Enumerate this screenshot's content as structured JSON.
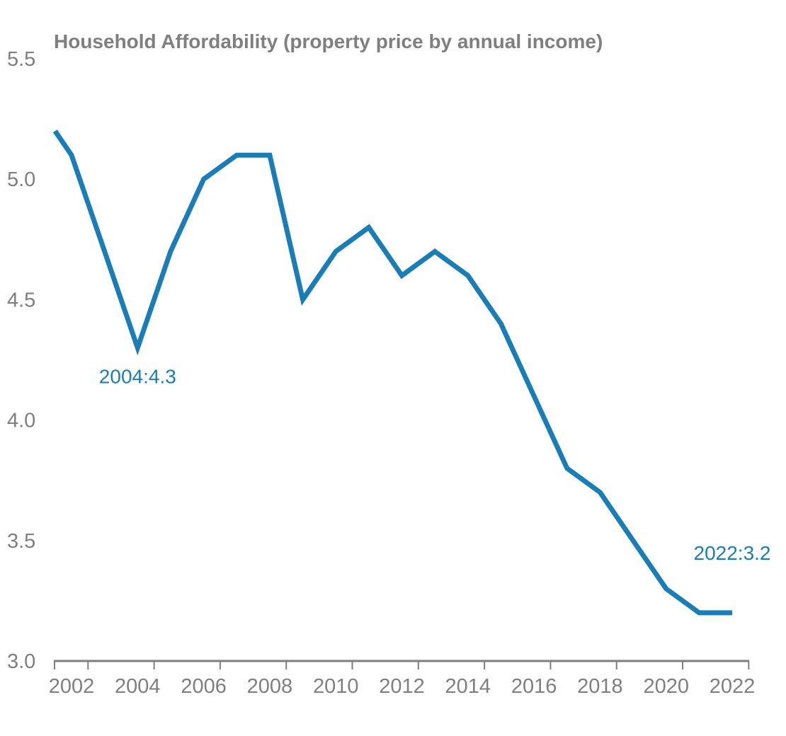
{
  "chart_data": {
    "type": "line",
    "title": "Household Affordability (property price by annual income)",
    "xlabel": "",
    "ylabel": "",
    "ylim": [
      3.0,
      5.5
    ],
    "y_ticks": [
      "3.0",
      "3.5",
      "4.0",
      "4.5",
      "5.0",
      "5.5"
    ],
    "x_tick_labels": [
      "2002",
      "2004",
      "2006",
      "2008",
      "2010",
      "2012",
      "2014",
      "2016",
      "2018",
      "2020",
      "2022"
    ],
    "grid": false,
    "legend": "none",
    "series": [
      {
        "color": "#1a7db5",
        "x": [
          2001.5,
          2002,
          2003,
          2004,
          2005,
          2006,
          2007,
          2008,
          2009,
          2010,
          2011,
          2012,
          2013,
          2014,
          2015,
          2016,
          2017,
          2018,
          2019,
          2020,
          2021,
          2022
        ],
        "values": [
          5.2,
          5.1,
          4.7,
          4.3,
          4.7,
          5.0,
          5.1,
          5.1,
          4.5,
          4.7,
          4.8,
          4.6,
          4.7,
          4.6,
          4.4,
          4.1,
          3.8,
          3.7,
          3.5,
          3.3,
          3.2,
          3.2
        ]
      }
    ],
    "annotations": [
      {
        "text": "2004:4.3",
        "x": 2004,
        "y": 4.3,
        "color": "#1a7db5"
      },
      {
        "text": "2022:3.2",
        "x": 2022,
        "y": 3.2,
        "color": "#1a7db5"
      }
    ]
  }
}
